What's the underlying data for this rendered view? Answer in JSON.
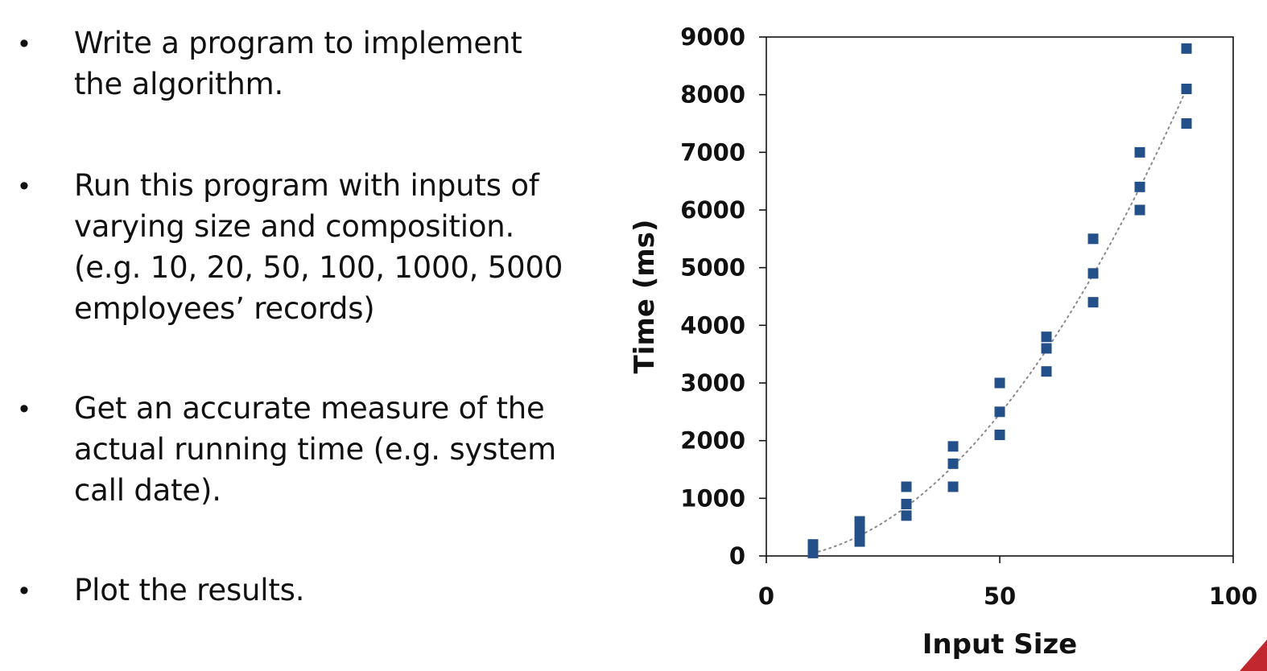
{
  "bullets": [
    {
      "text": "Write a program to implement\nthe algorithm."
    },
    {
      "text": "Run this program with inputs of\nvarying size and composition.\n(e.g. 10, 20, 50, 100, 1000, 5000\nemployees’ records)"
    },
    {
      "text": "Get an accurate measure of the\nactual running time (e.g. system\ncall date)."
    },
    {
      "text": "Plot the results."
    }
  ],
  "bullet_symbol": "•",
  "chart_data": {
    "type": "scatter",
    "title": "",
    "xlabel": "Input Size",
    "ylabel": "Time (ms)",
    "xlim": [
      0,
      100
    ],
    "ylim": [
      0,
      9000
    ],
    "x_ticks": [
      0,
      50,
      100
    ],
    "y_ticks": [
      0,
      1000,
      2000,
      3000,
      4000,
      5000,
      6000,
      7000,
      8000,
      9000
    ],
    "grid": false,
    "trendline": {
      "style": "dotted",
      "shape": "quadratic",
      "x_range": [
        10,
        90
      ],
      "y_range": [
        50,
        8100
      ]
    },
    "points": [
      {
        "x": 10,
        "y": 200
      },
      {
        "x": 10,
        "y": 100
      },
      {
        "x": 10,
        "y": 50
      },
      {
        "x": 20,
        "y": 600
      },
      {
        "x": 20,
        "y": 500
      },
      {
        "x": 20,
        "y": 400
      },
      {
        "x": 20,
        "y": 250
      },
      {
        "x": 30,
        "y": 1200
      },
      {
        "x": 30,
        "y": 900
      },
      {
        "x": 30,
        "y": 700
      },
      {
        "x": 40,
        "y": 1900
      },
      {
        "x": 40,
        "y": 1600
      },
      {
        "x": 40,
        "y": 1200
      },
      {
        "x": 50,
        "y": 3000
      },
      {
        "x": 50,
        "y": 2500
      },
      {
        "x": 50,
        "y": 2100
      },
      {
        "x": 60,
        "y": 3800
      },
      {
        "x": 60,
        "y": 3600
      },
      {
        "x": 60,
        "y": 3200
      },
      {
        "x": 70,
        "y": 5500
      },
      {
        "x": 70,
        "y": 4900
      },
      {
        "x": 70,
        "y": 4400
      },
      {
        "x": 80,
        "y": 7000
      },
      {
        "x": 80,
        "y": 6400
      },
      {
        "x": 80,
        "y": 6000
      },
      {
        "x": 90,
        "y": 8800
      },
      {
        "x": 90,
        "y": 8100
      },
      {
        "x": 90,
        "y": 7500
      }
    ],
    "marker_color": "#24508a",
    "trendline_color": "#8a8a8a"
  },
  "accent_color": "#c0282d"
}
